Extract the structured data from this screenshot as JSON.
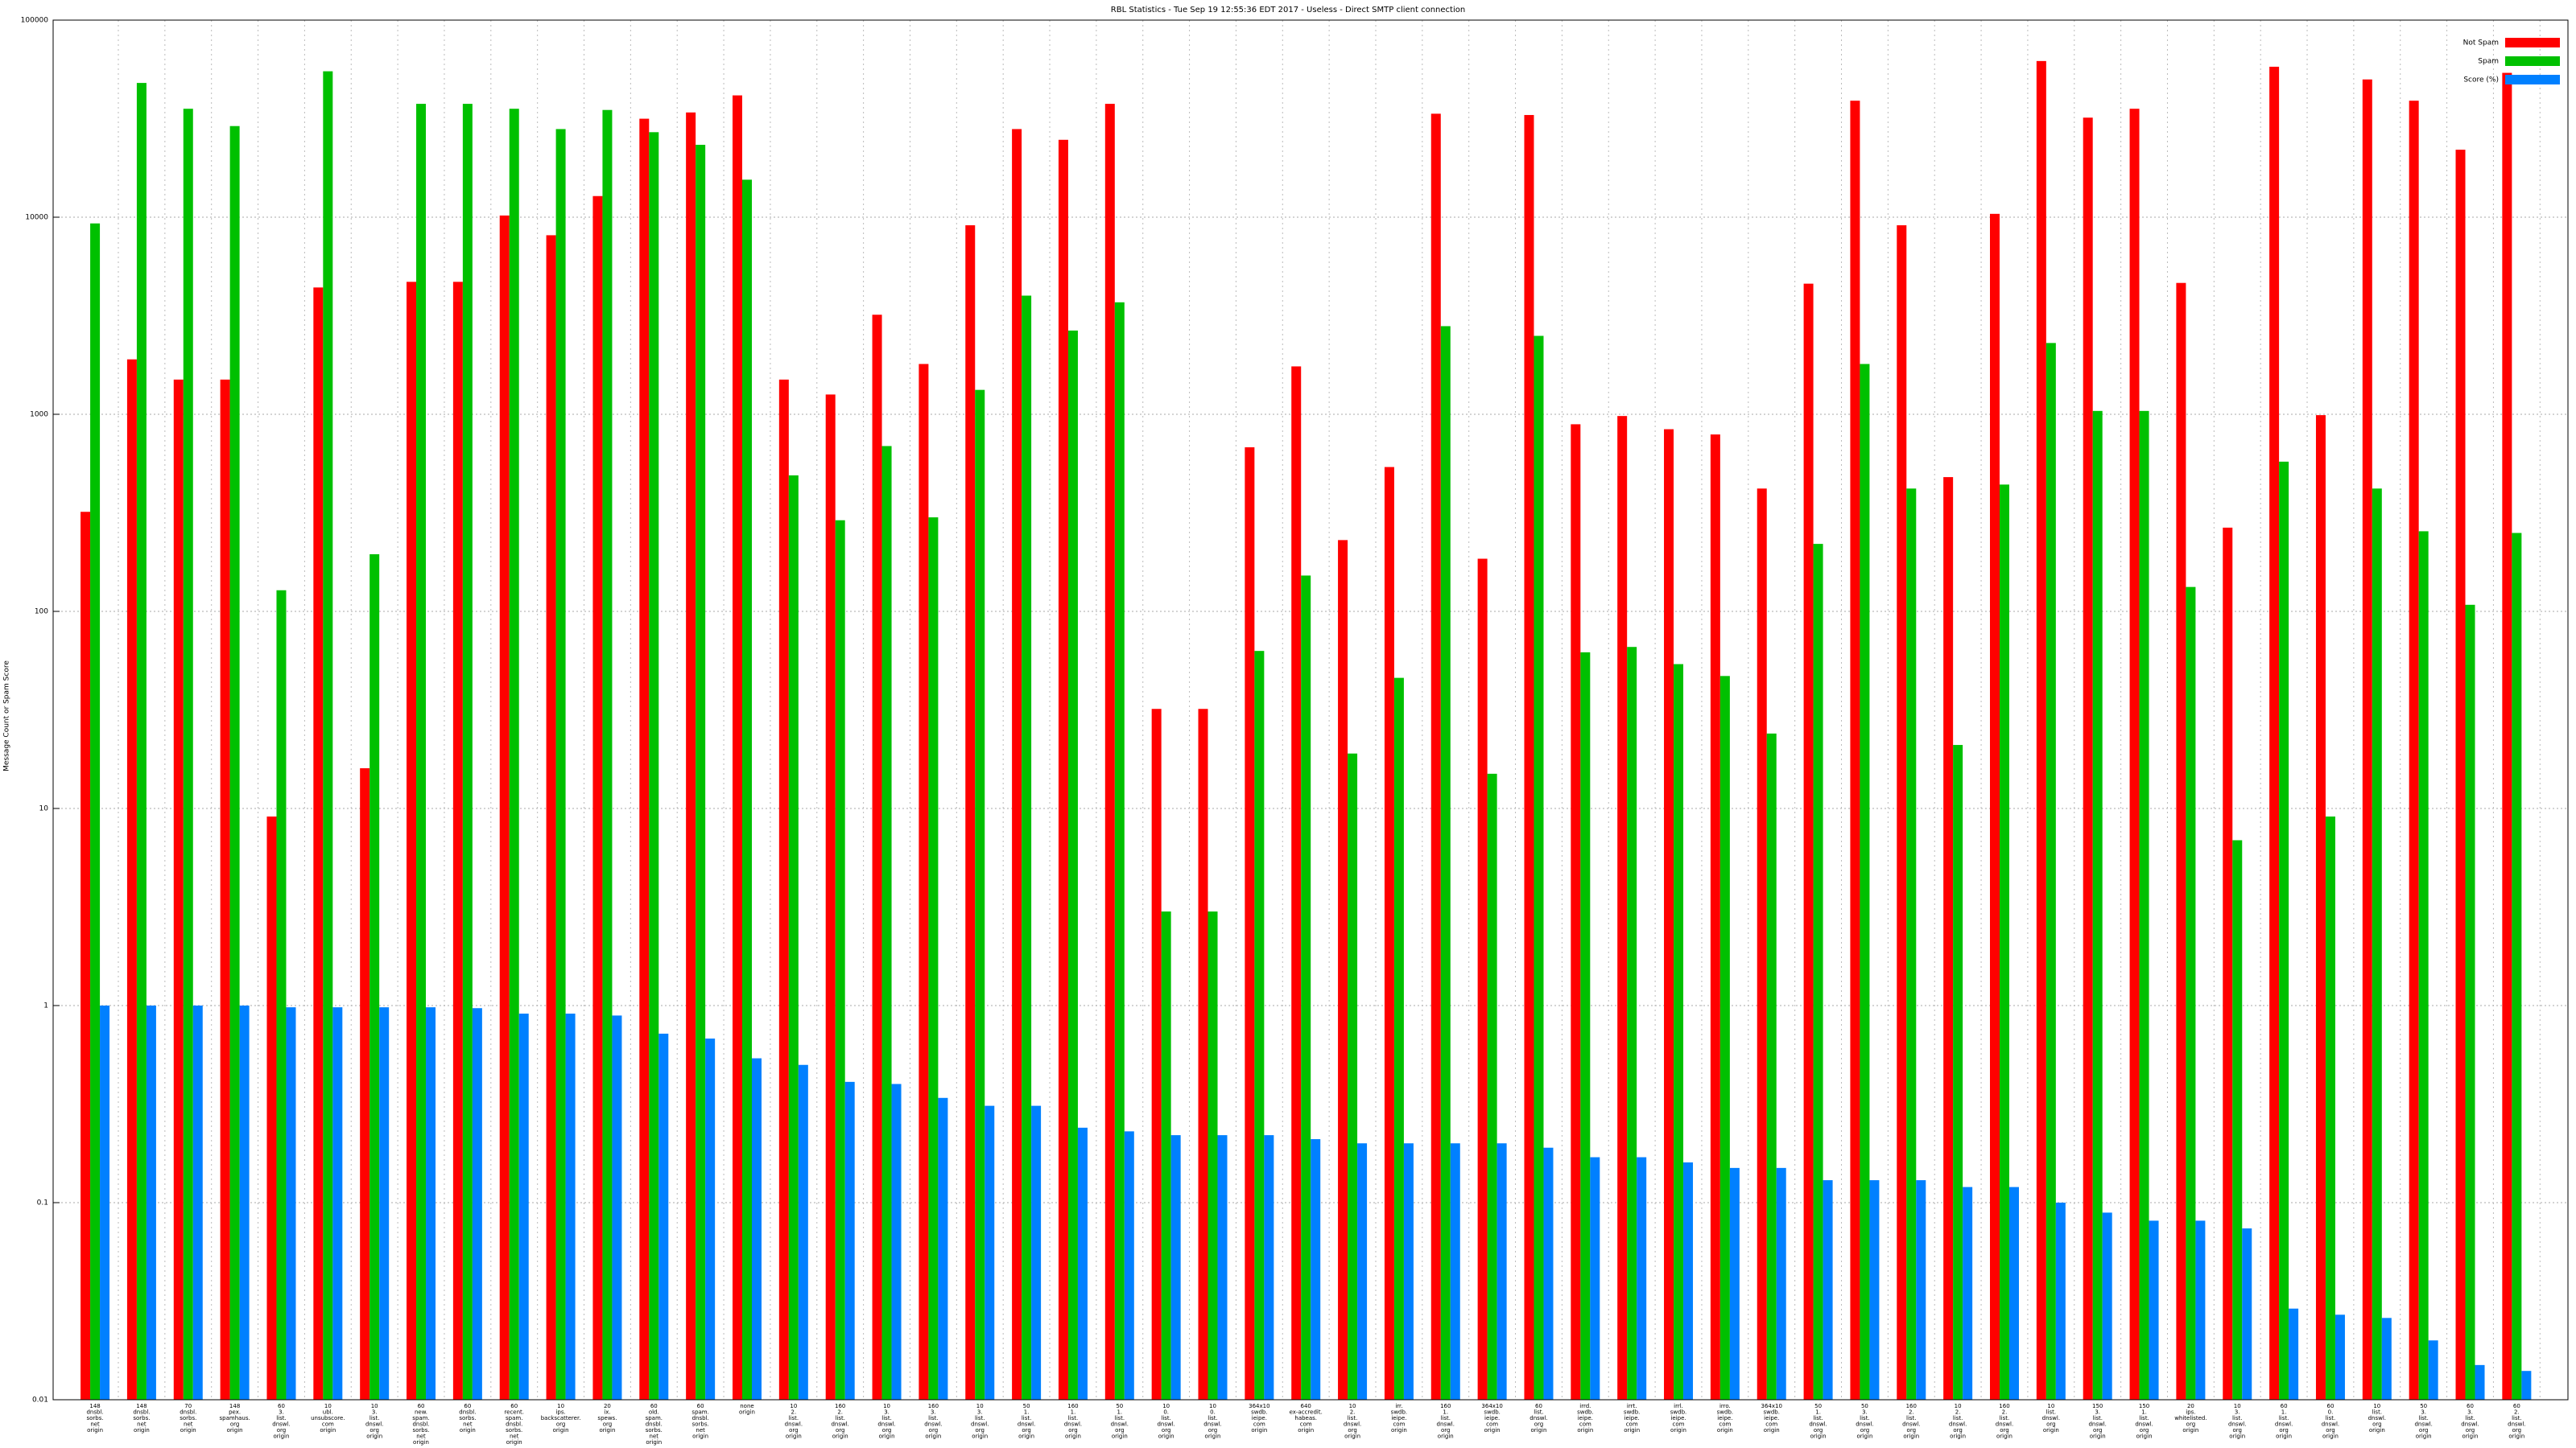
{
  "chart_data": {
    "type": "bar",
    "title": "RBL Statistics - Tue Sep 19 12:55:36 EDT 2017 - Useless - Direct SMTP client connection",
    "y_label": "Message Count or Spam Score",
    "log_scale": true,
    "grid": true,
    "legend": "top-right",
    "ylim": [
      0.01,
      100000
    ],
    "yticks": [
      0.01,
      0.1,
      1,
      10,
      100,
      1000,
      10000,
      100000
    ],
    "categories": [
      [
        "148",
        "dnsbl.",
        "sorbs.",
        "net",
        "origin"
      ],
      [
        "148",
        "dnsbl.",
        "sorbs.",
        "net",
        "origin"
      ],
      [
        "70",
        "dnsbl.",
        "sorbs.",
        "net",
        "origin"
      ],
      [
        "148",
        "pex.",
        "spamhaus.",
        "org",
        "origin"
      ],
      [
        "60",
        "3.",
        "list.",
        "dnswl.",
        "org",
        "origin"
      ],
      [
        "10",
        "ubl.",
        "unsubscore.",
        "com",
        "origin"
      ],
      [
        "10",
        "3.",
        "list.",
        "dnswl.",
        "org",
        "origin"
      ],
      [
        "60",
        "new.",
        "spam.",
        "dnsbl.",
        "sorbs.",
        "net",
        "origin"
      ],
      [
        "60",
        "dnsbl.",
        "sorbs.",
        "net",
        "origin"
      ],
      [
        "60",
        "recent.",
        "spam.",
        "dnsbl.",
        "sorbs.",
        "net",
        "origin"
      ],
      [
        "10",
        "ips.",
        "backscatterer.",
        "org",
        "origin"
      ],
      [
        "20",
        "ix.",
        "spews.",
        "org",
        "origin"
      ],
      [
        "60",
        "old.",
        "spam.",
        "dnsbl.",
        "sorbs.",
        "net",
        "origin"
      ],
      [
        "60",
        "spam.",
        "dnsbl.",
        "sorbs.",
        "net",
        "origin"
      ],
      [
        "none",
        "origin"
      ],
      [
        "10",
        "2.",
        "list.",
        "dnswl.",
        "org",
        "origin"
      ],
      [
        "160",
        "2.",
        "list.",
        "dnswl.",
        "org",
        "origin"
      ],
      [
        "10",
        "3.",
        "list.",
        "dnswl.",
        "org",
        "origin"
      ],
      [
        "160",
        "3.",
        "list.",
        "dnswl.",
        "org",
        "origin"
      ],
      [
        "10",
        "3.",
        "list.",
        "dnswl.",
        "org",
        "origin"
      ],
      [
        "50",
        "1.",
        "list.",
        "dnswl.",
        "org",
        "origin"
      ],
      [
        "160",
        "1.",
        "list.",
        "dnswl.",
        "org",
        "origin"
      ],
      [
        "50",
        "1.",
        "list.",
        "dnswl.",
        "org",
        "origin"
      ],
      [
        "10",
        "0.",
        "list.",
        "dnswl.",
        "org",
        "origin"
      ],
      [
        "10",
        "0.",
        "list.",
        "dnswl.",
        "org",
        "origin"
      ],
      [
        "364x10",
        "swdb.",
        "ieipe.",
        "com",
        "origin"
      ],
      [
        "640",
        "ex-accredit.",
        "habeas.",
        "com",
        "origin"
      ],
      [
        "10",
        "2.",
        "list.",
        "dnswl.",
        "org",
        "origin"
      ],
      [
        "irr.",
        "swdb.",
        "ieipe.",
        "com",
        "origin"
      ],
      [
        "160",
        "1.",
        "list.",
        "dnswl.",
        "org",
        "origin"
      ],
      [
        "364x10",
        "swdb.",
        "ieipe.",
        "com",
        "origin"
      ],
      [
        "60",
        "list.",
        "dnswl.",
        "org",
        "origin"
      ],
      [
        "irrd.",
        "swdb.",
        "ieipe.",
        "com",
        "origin"
      ],
      [
        "irrt.",
        "swdb.",
        "ieipe.",
        "com",
        "origin"
      ],
      [
        "irrl.",
        "swdb.",
        "ieipe.",
        "com",
        "origin"
      ],
      [
        "irro.",
        "swdb.",
        "ieipe.",
        "com",
        "origin"
      ],
      [
        "364x10",
        "swdb.",
        "ieipe.",
        "com",
        "origin"
      ],
      [
        "50",
        "1.",
        "list.",
        "dnswl.",
        "org",
        "origin"
      ],
      [
        "50",
        "3.",
        "list.",
        "dnswl.",
        "org",
        "origin"
      ],
      [
        "160",
        "2.",
        "list.",
        "dnswl.",
        "org",
        "origin"
      ],
      [
        "10",
        "2.",
        "list.",
        "dnswl.",
        "org",
        "origin"
      ],
      [
        "160",
        "2.",
        "list.",
        "dnswl.",
        "org",
        "origin"
      ],
      [
        "10",
        "list.",
        "dnswl.",
        "org",
        "origin"
      ],
      [
        "150",
        "3.",
        "list.",
        "dnswl.",
        "org",
        "origin"
      ],
      [
        "150",
        "1.",
        "list.",
        "dnswl.",
        "org",
        "origin"
      ],
      [
        "20",
        "ips.",
        "whitelisted.",
        "org",
        "origin"
      ],
      [
        "10",
        "3.",
        "list.",
        "dnswl.",
        "org",
        "origin"
      ],
      [
        "60",
        "1.",
        "list.",
        "dnswl.",
        "org",
        "origin"
      ],
      [
        "60",
        "0.",
        "list.",
        "dnswl.",
        "org",
        "origin"
      ],
      [
        "10",
        "list.",
        "dnswl.",
        "org",
        "origin"
      ],
      [
        "50",
        "3.",
        "list.",
        "dnswl.",
        "org",
        "origin"
      ],
      [
        "60",
        "3.",
        "list.",
        "dnswl.",
        "org",
        "origin"
      ],
      [
        "60",
        "2.",
        "list.",
        "dnswl.",
        "org",
        "origin"
      ]
    ],
    "series": [
      {
        "name": "Not Spam",
        "color": "#ff0000",
        "values": [
          320,
          1900,
          1500,
          1500,
          9.1,
          4400,
          16,
          4700,
          4700,
          10200,
          8100,
          12800,
          31600,
          34000,
          41500,
          1500,
          1260,
          3200,
          1800,
          9100,
          28000,
          24700,
          37600,
          32,
          32,
          680,
          1750,
          230,
          540,
          33500,
          185,
          33000,
          890,
          980,
          840,
          790,
          420,
          4600,
          39000,
          9100,
          480,
          10400,
          62000,
          32000,
          35500,
          4640,
          266,
          58000,
          990,
          50000,
          39000,
          22000,
          54000
        ]
      },
      {
        "name": "Spam",
        "color": "#00c000",
        "values": [
          9300,
          48000,
          35500,
          29000,
          128,
          55000,
          195,
          37600,
          37600,
          35500,
          28000,
          35000,
          27000,
          23300,
          15500,
          490,
          290,
          690,
          300,
          1330,
          4000,
          2660,
          3700,
          3.0,
          3.0,
          63,
          152,
          19,
          46,
          2800,
          15,
          2500,
          62,
          66,
          54,
          47,
          24,
          220,
          1800,
          420,
          21,
          440,
          2300,
          1040,
          1040,
          133,
          6.9,
          575,
          9.1,
          420,
          255,
          108,
          250
        ]
      },
      {
        "name": "Score (%)",
        "color": "#0080ff",
        "values": [
          1,
          1,
          1,
          1,
          0.98,
          0.98,
          0.98,
          0.98,
          0.97,
          0.91,
          0.91,
          0.89,
          0.72,
          0.68,
          0.54,
          0.5,
          0.41,
          0.4,
          0.34,
          0.31,
          0.31,
          0.24,
          0.23,
          0.22,
          0.22,
          0.22,
          0.21,
          0.2,
          0.2,
          0.2,
          0.2,
          0.19,
          0.17,
          0.17,
          0.16,
          0.15,
          0.15,
          0.13,
          0.13,
          0.13,
          0.12,
          0.12,
          0.1,
          0.089,
          0.081,
          0.081,
          0.074,
          0.029,
          0.027,
          0.026,
          0.02,
          0.015,
          0.014
        ]
      }
    ]
  }
}
